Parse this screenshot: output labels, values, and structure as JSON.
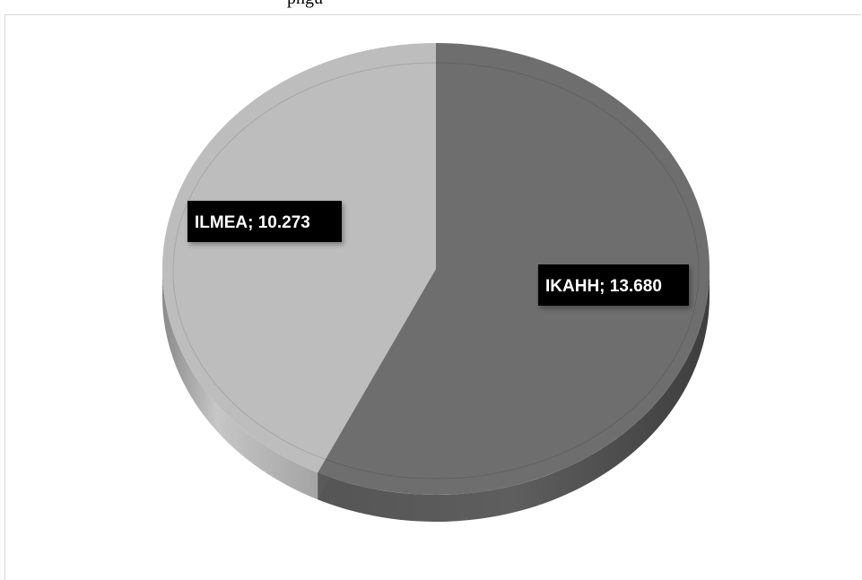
{
  "figure": {
    "caption_fragment": "pngu"
  },
  "chart_data": {
    "type": "pie",
    "style": "3d",
    "legend": "none",
    "slices": [
      {
        "label": "IKAHH",
        "value": 13680,
        "display": "IKAHH; 13.680",
        "color": "#6e6e6e"
      },
      {
        "label": "ILMEA",
        "value": 10273,
        "display": "ILMEA; 10.273",
        "color": "#bdbdbd"
      }
    ]
  }
}
